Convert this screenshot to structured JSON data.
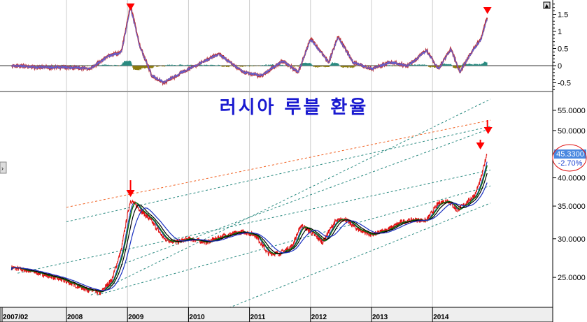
{
  "chart_data": [
    {
      "type": "line",
      "panel": "oscillator",
      "ylim": [
        -0.7,
        1.9
      ],
      "yticks": [
        "1.5",
        "1",
        "0.5",
        "0",
        "-0.5"
      ],
      "x": [
        2007.1,
        2007.5,
        2008.0,
        2008.4,
        2008.7,
        2008.9,
        2009.05,
        2009.2,
        2009.4,
        2009.6,
        2010.0,
        2010.5,
        2010.9,
        2011.2,
        2011.55,
        2011.8,
        2012.0,
        2012.3,
        2012.45,
        2012.7,
        2013.0,
        2013.3,
        2013.6,
        2013.9,
        2014.1,
        2014.3,
        2014.45,
        2014.6,
        2014.8,
        2014.9
      ],
      "values": [
        0.0,
        -0.05,
        -0.05,
        -0.08,
        0.3,
        0.4,
        1.75,
        0.6,
        -0.3,
        -0.5,
        -0.1,
        0.35,
        -0.2,
        -0.3,
        0.15,
        -0.2,
        0.8,
        0.1,
        0.85,
        0.1,
        -0.1,
        0.1,
        0.0,
        0.45,
        -0.1,
        0.5,
        -0.2,
        0.3,
        0.8,
        1.45
      ],
      "markers": [
        {
          "x": 2009.05,
          "label": "down-arrow"
        },
        {
          "x": 2014.9,
          "label": "down-arrow"
        }
      ]
    },
    {
      "type": "line",
      "panel": "price",
      "title": "러시아 루블 환율",
      "scale": "log",
      "ylim": [
        22,
        58
      ],
      "yticks": [
        "55.0000",
        "50.0000",
        "40.0000",
        "35.0000",
        "30.0000",
        "25.0000"
      ],
      "xticks": [
        "2007/02",
        "2008",
        "2009",
        "2010",
        "2011",
        "2012",
        "2013",
        "2014"
      ],
      "last_value": "45.3300",
      "change": "-2.70%",
      "x": [
        2007.1,
        2007.5,
        2007.8,
        2008.0,
        2008.3,
        2008.55,
        2008.75,
        2008.9,
        2009.05,
        2009.2,
        2009.4,
        2009.6,
        2009.8,
        2010.0,
        2010.3,
        2010.6,
        2010.9,
        2011.1,
        2011.3,
        2011.5,
        2011.7,
        2011.85,
        2012.0,
        2012.2,
        2012.4,
        2012.55,
        2012.75,
        2013.0,
        2013.3,
        2013.5,
        2013.7,
        2013.9,
        2014.1,
        2014.25,
        2014.4,
        2014.55,
        2014.7,
        2014.8,
        2014.9
      ],
      "values": [
        26.2,
        25.6,
        25.0,
        24.5,
        23.7,
        23.2,
        24.8,
        28.5,
        36.0,
        34.5,
        32.5,
        30.0,
        29.5,
        30.0,
        29.5,
        30.5,
        31.0,
        30.5,
        28.0,
        28.0,
        29.0,
        32.0,
        31.0,
        29.5,
        32.5,
        33.0,
        31.5,
        30.5,
        31.5,
        32.5,
        32.8,
        32.7,
        35.5,
        36.0,
        34.3,
        35.5,
        37.0,
        40.0,
        45.33
      ],
      "trendlines": [
        {
          "color": "#f06020",
          "from": [
            2008.0,
            34.8
          ],
          "to": [
            2014.95,
            52.5
          ]
        },
        {
          "color": "#2a8a80",
          "from": [
            2008.0,
            32.5
          ],
          "to": [
            2014.95,
            51.0
          ]
        },
        {
          "color": "#2a8a80",
          "from": [
            2008.4,
            23.0
          ],
          "to": [
            2014.95,
            58.0
          ]
        },
        {
          "color": "#2a8a80",
          "from": [
            2008.7,
            26.0
          ],
          "to": [
            2014.95,
            50.5
          ]
        },
        {
          "color": "#2a8a80",
          "from": [
            2007.2,
            25.5
          ],
          "to": [
            2014.95,
            41.5
          ]
        },
        {
          "color": "#2a8a80",
          "from": [
            2008.5,
            23.0
          ],
          "to": [
            2014.95,
            38.5
          ]
        },
        {
          "color": "#2a8a80",
          "from": [
            2010.6,
            21.5
          ],
          "to": [
            2014.95,
            35.5
          ]
        }
      ],
      "markers": [
        {
          "x": 2009.05,
          "label": "down-arrow"
        },
        {
          "x": 2014.9,
          "label": "down-arrow"
        },
        {
          "x": 2014.75,
          "label": "down-arrow"
        }
      ],
      "colors": {
        "price": "#e01010",
        "ma_short": "#1a30c0",
        "ma_mid": "#0a6a0a",
        "ma_long": "#000000",
        "title": "#1a1ad0"
      }
    }
  ]
}
